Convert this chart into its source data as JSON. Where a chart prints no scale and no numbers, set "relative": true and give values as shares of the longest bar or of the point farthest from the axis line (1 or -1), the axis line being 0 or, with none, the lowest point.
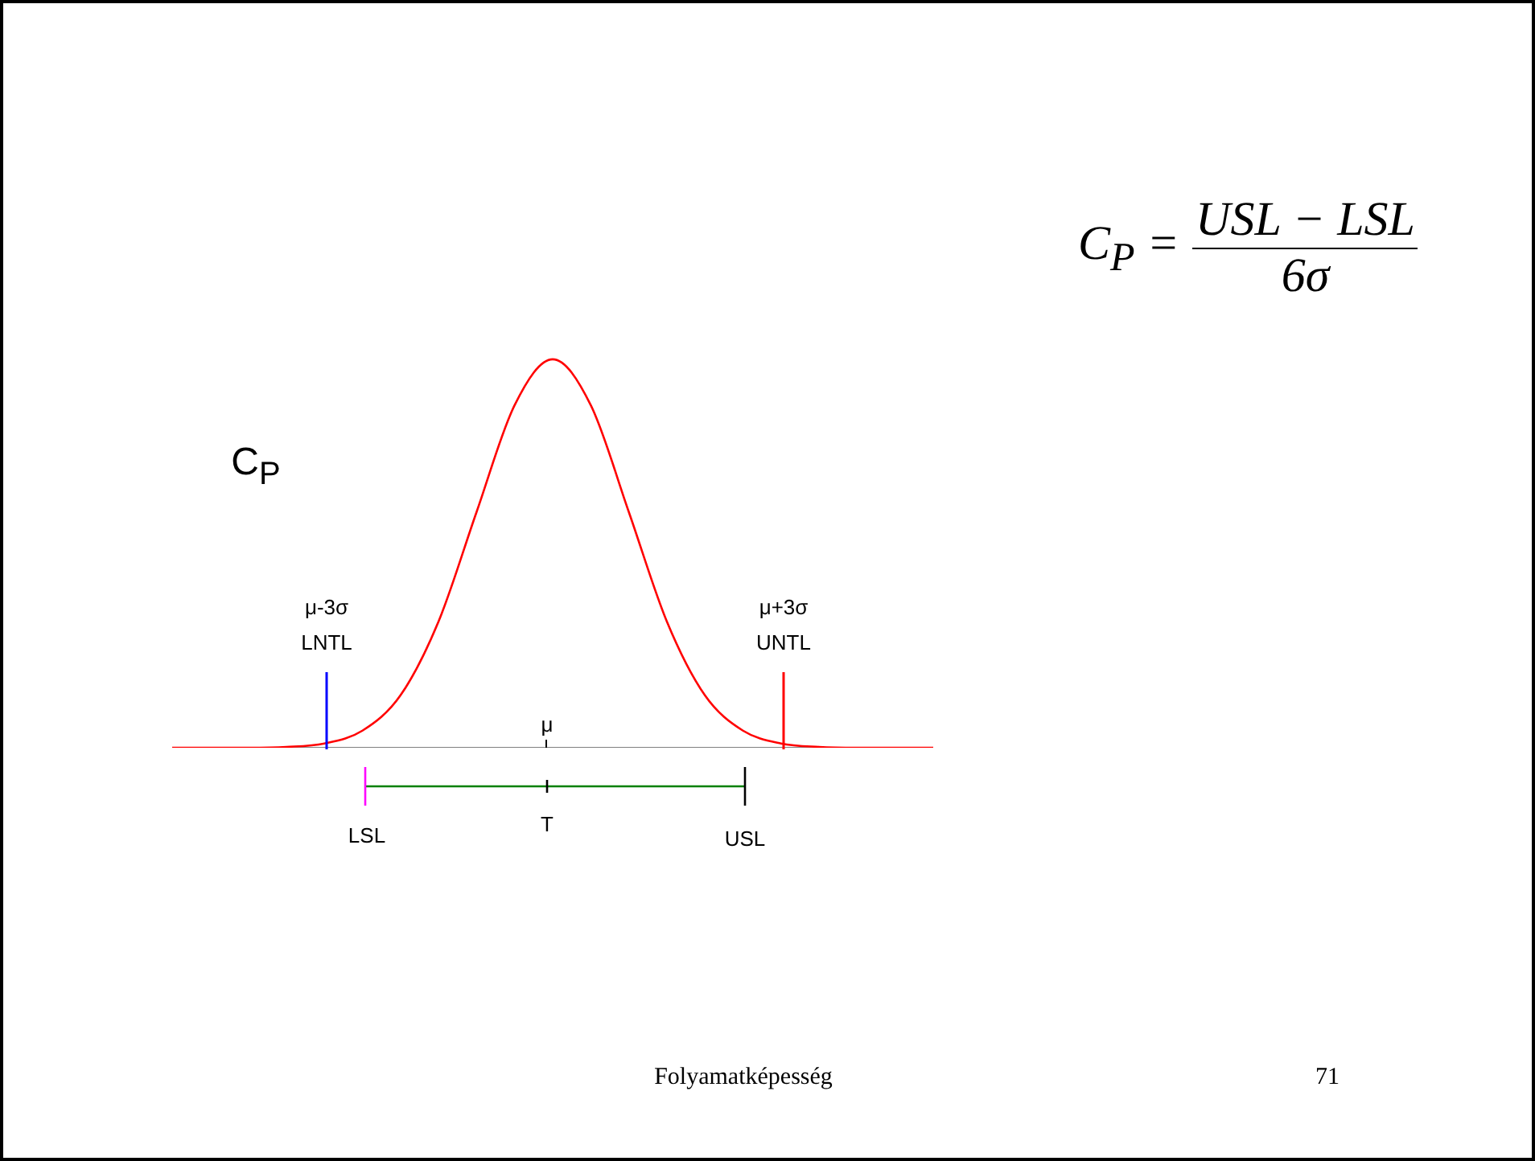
{
  "chart_data": {
    "type": "line",
    "relative": true,
    "categories": [
      null,
      null,
      null,
      null,
      null,
      null,
      null,
      null,
      null,
      null,
      null,
      null,
      null,
      null,
      null,
      null,
      null,
      null,
      null,
      null,
      null
    ],
    "series": [
      {
        "color": "#ff0000",
        "values": [
          0,
          0,
          0,
          0.002,
          0.011,
          0.044,
          0.135,
          0.325,
          0.607,
          0.882,
          1,
          0.882,
          0.607,
          0.325,
          0.135,
          0.044,
          0.011,
          0.002,
          0,
          0,
          0
        ]
      }
    ],
    "annotations": [
      "μ-3σ",
      "LNTL",
      "μ+3σ",
      "UNTL",
      "μ",
      "LSL",
      "T",
      "USL",
      "C$_{P}$",
      "C$_{P}$ =",
      "USL − LSL",
      "6σ",
      "Folyamatképesség",
      "71"
    ]
  }
}
